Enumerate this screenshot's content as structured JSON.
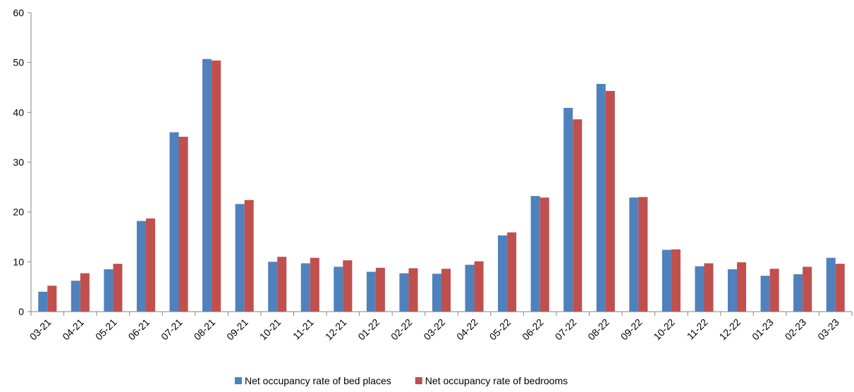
{
  "chart_data": {
    "type": "bar",
    "categories": [
      "03-21",
      "04-21",
      "05-21",
      "06-21",
      "07-21",
      "08-21",
      "09-21",
      "10-21",
      "11-21",
      "12-21",
      "01-22",
      "02-22",
      "03-22",
      "04-22",
      "05-22",
      "06-22",
      "07-22",
      "08-22",
      "09-22",
      "10-22",
      "11-22",
      "12-22",
      "01-23",
      "02-23",
      "03-23"
    ],
    "series": [
      {
        "name": "Net occupancy rate of bed places",
        "color": "#4f81bd",
        "values": [
          4.0,
          6.2,
          8.5,
          18.2,
          36.0,
          50.7,
          21.6,
          10.0,
          9.7,
          9.0,
          8.0,
          7.7,
          7.6,
          9.4,
          15.3,
          23.2,
          40.9,
          45.7,
          22.9,
          12.4,
          9.1,
          8.5,
          7.2,
          7.5,
          10.8
        ]
      },
      {
        "name": "Net occupancy rate of bedrooms",
        "color": "#c0504d",
        "values": [
          5.2,
          7.7,
          9.6,
          18.7,
          35.1,
          50.4,
          22.4,
          11.0,
          10.8,
          10.3,
          8.8,
          8.7,
          8.6,
          10.1,
          15.9,
          22.9,
          38.6,
          44.3,
          23.0,
          12.5,
          9.7,
          9.9,
          8.6,
          9.0,
          9.6
        ]
      }
    ],
    "ylim": [
      0,
      60
    ],
    "yticks": [
      0,
      10,
      20,
      30,
      40,
      50,
      60
    ],
    "legend": "bottom"
  }
}
